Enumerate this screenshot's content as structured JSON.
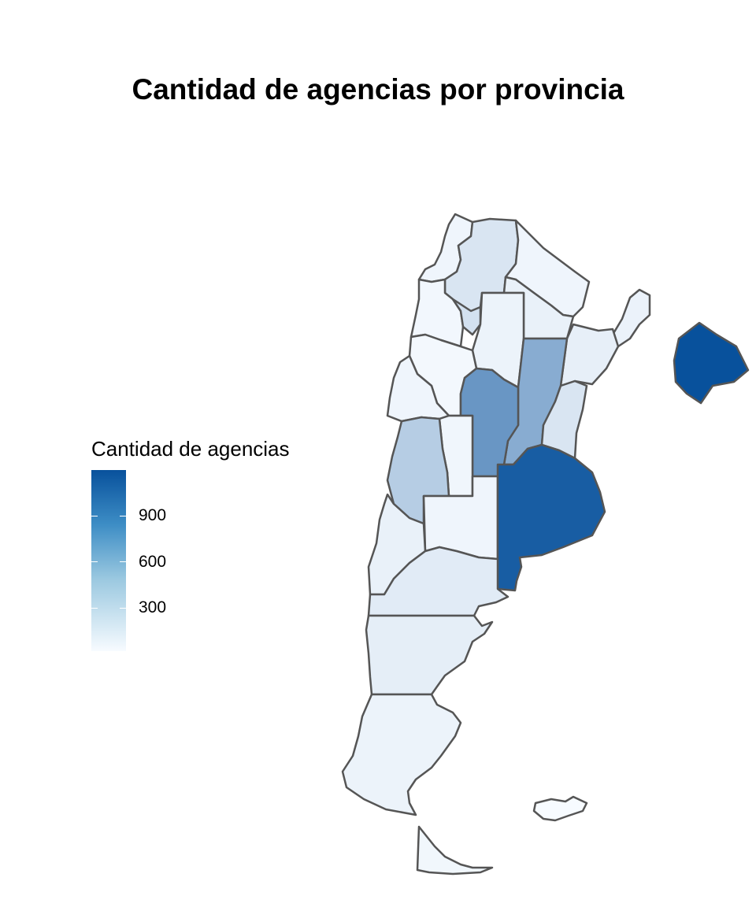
{
  "title": "Cantidad de agencias por provincia",
  "legend": {
    "title": "Cantidad de agencias",
    "ticks": [
      "900",
      "600",
      "300"
    ],
    "scale": {
      "low_color": "#f7fbff",
      "high_color": "#08519c",
      "max": 1180
    }
  },
  "regions": [
    {
      "id": "jujuy",
      "value": 40
    },
    {
      "id": "salta",
      "value": 150
    },
    {
      "id": "formosa",
      "value": 40
    },
    {
      "id": "chaco",
      "value": 70
    },
    {
      "id": "misiones",
      "value": 60
    },
    {
      "id": "catamarca",
      "value": 25
    },
    {
      "id": "tucuman",
      "value": 180
    },
    {
      "id": "santiago-del-estero",
      "value": 55
    },
    {
      "id": "corrientes",
      "value": 80
    },
    {
      "id": "la-rioja",
      "value": 20
    },
    {
      "id": "san-juan",
      "value": 40
    },
    {
      "id": "cordoba",
      "value": 700
    },
    {
      "id": "santa-fe",
      "value": 550
    },
    {
      "id": "entre-rios",
      "value": 150
    },
    {
      "id": "san-luis",
      "value": 35
    },
    {
      "id": "mendoza",
      "value": 320
    },
    {
      "id": "la-pampa",
      "value": 40
    },
    {
      "id": "buenos-aires",
      "value": 1100
    },
    {
      "id": "caba",
      "value": 1180
    },
    {
      "id": "neuquen",
      "value": 70
    },
    {
      "id": "rio-negro",
      "value": 110
    },
    {
      "id": "chubut",
      "value": 90
    },
    {
      "id": "santa-cruz",
      "value": 55
    },
    {
      "id": "tierra-del-fuego",
      "value": 30
    },
    {
      "id": "islas-malvinas",
      "value": 0
    }
  ]
}
